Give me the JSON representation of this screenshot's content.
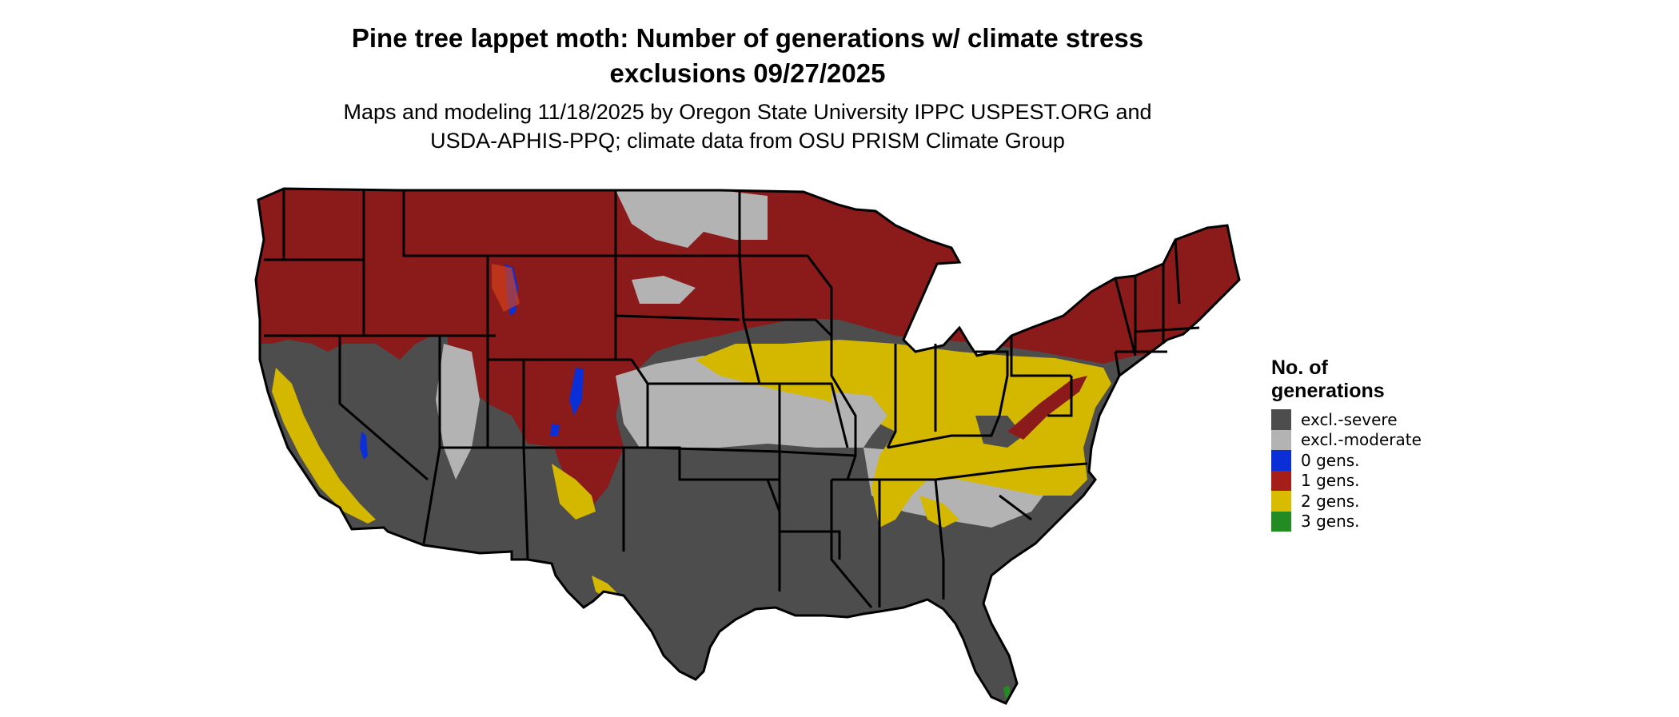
{
  "title": {
    "line1": "Pine tree lappet moth: Number of generations w/ climate stress",
    "line2": "exclusions 09/27/2025"
  },
  "subtitle": {
    "line1": "Maps and modeling 11/18/2025 by Oregon State University IPPC USPEST.ORG and",
    "line2": "USDA-APHIS-PPQ; climate data from OSU PRISM Climate Group"
  },
  "legend": {
    "title_line1": "No. of",
    "title_line2": "generations",
    "items": [
      {
        "label": "excl.-severe",
        "color": "#4d4d4d"
      },
      {
        "label": "excl.-moderate",
        "color": "#b3b3b3"
      },
      {
        "label": "0 gens.",
        "color": "#0a2fd6"
      },
      {
        "label": "1 gens.",
        "color": "#a51e1a"
      },
      {
        "label": "2 gens.",
        "color": "#d9bc00"
      },
      {
        "label": "3 gens.",
        "color": "#228b22"
      }
    ]
  },
  "colors": {
    "excl_severe": "#4d4d4d",
    "excl_moderate": "#b3b3b3",
    "gens0": "#0a2fd6",
    "gens1": "#8b1a1a",
    "gens2": "#d4b800",
    "gens3": "#228b22",
    "border": "#000000"
  }
}
